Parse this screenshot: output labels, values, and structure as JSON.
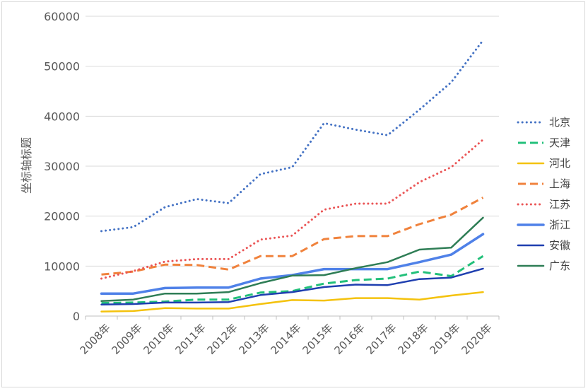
{
  "chart_data": {
    "type": "line",
    "title": "",
    "xlabel": "",
    "ylabel": "坐标轴标题",
    "ylim": [
      0,
      60000
    ],
    "yticks": [
      0,
      10000,
      20000,
      30000,
      40000,
      50000,
      60000
    ],
    "ytick_labels": [
      "0",
      "10000",
      "20000",
      "30000",
      "40000",
      "50000",
      "60000"
    ],
    "categories": [
      "2008年",
      "2009年",
      "2010年",
      "2011年",
      "2012年",
      "2013年",
      "2014年",
      "2015年",
      "2016年",
      "2017年",
      "2018年",
      "2019年",
      "2020年"
    ],
    "grid": "horizontal",
    "legend_position": "right",
    "series": [
      {
        "name": "北京",
        "color": "#4472c4",
        "style": "dotted",
        "values": [
          17000,
          17800,
          21800,
          23400,
          22600,
          28400,
          29800,
          38600,
          37300,
          36200,
          41300,
          46800,
          55200
        ]
      },
      {
        "name": "天津",
        "color": "#22c07a",
        "style": "dashed",
        "values": [
          2600,
          2700,
          2900,
          3300,
          3300,
          4700,
          5000,
          6500,
          7200,
          7500,
          8900,
          8000,
          12000
        ]
      },
      {
        "name": "河北",
        "color": "#f4c20d",
        "style": "solid",
        "values": [
          900,
          1000,
          1600,
          1500,
          1500,
          2400,
          3200,
          3100,
          3600,
          3600,
          3300,
          4100,
          4800
        ]
      },
      {
        "name": "上海",
        "color": "#f0823c",
        "style": "dashed",
        "values": [
          8300,
          8900,
          10300,
          10200,
          9300,
          12000,
          12000,
          15400,
          16000,
          16000,
          18400,
          20300,
          23700
        ]
      },
      {
        "name": "江苏",
        "color": "#ea5455",
        "style": "dotted",
        "values": [
          7500,
          9000,
          10900,
          11400,
          11400,
          15300,
          16100,
          21300,
          22500,
          22500,
          26800,
          29800,
          35300
        ]
      },
      {
        "name": "浙江",
        "color": "#4f81e8",
        "style": "solid-thick",
        "values": [
          4500,
          4500,
          5600,
          5700,
          5700,
          7500,
          8200,
          9400,
          9400,
          9400,
          10800,
          12300,
          16400
        ]
      },
      {
        "name": "安徽",
        "color": "#1f3fb0",
        "style": "solid",
        "values": [
          2300,
          2400,
          2700,
          2700,
          2800,
          4200,
          4800,
          5800,
          6300,
          6200,
          7400,
          7700,
          9500
        ]
      },
      {
        "name": "广东",
        "color": "#2e7d55",
        "style": "solid",
        "values": [
          3000,
          3300,
          4500,
          4500,
          4800,
          6600,
          8100,
          8200,
          9600,
          10800,
          13300,
          13700,
          19700
        ]
      }
    ]
  }
}
